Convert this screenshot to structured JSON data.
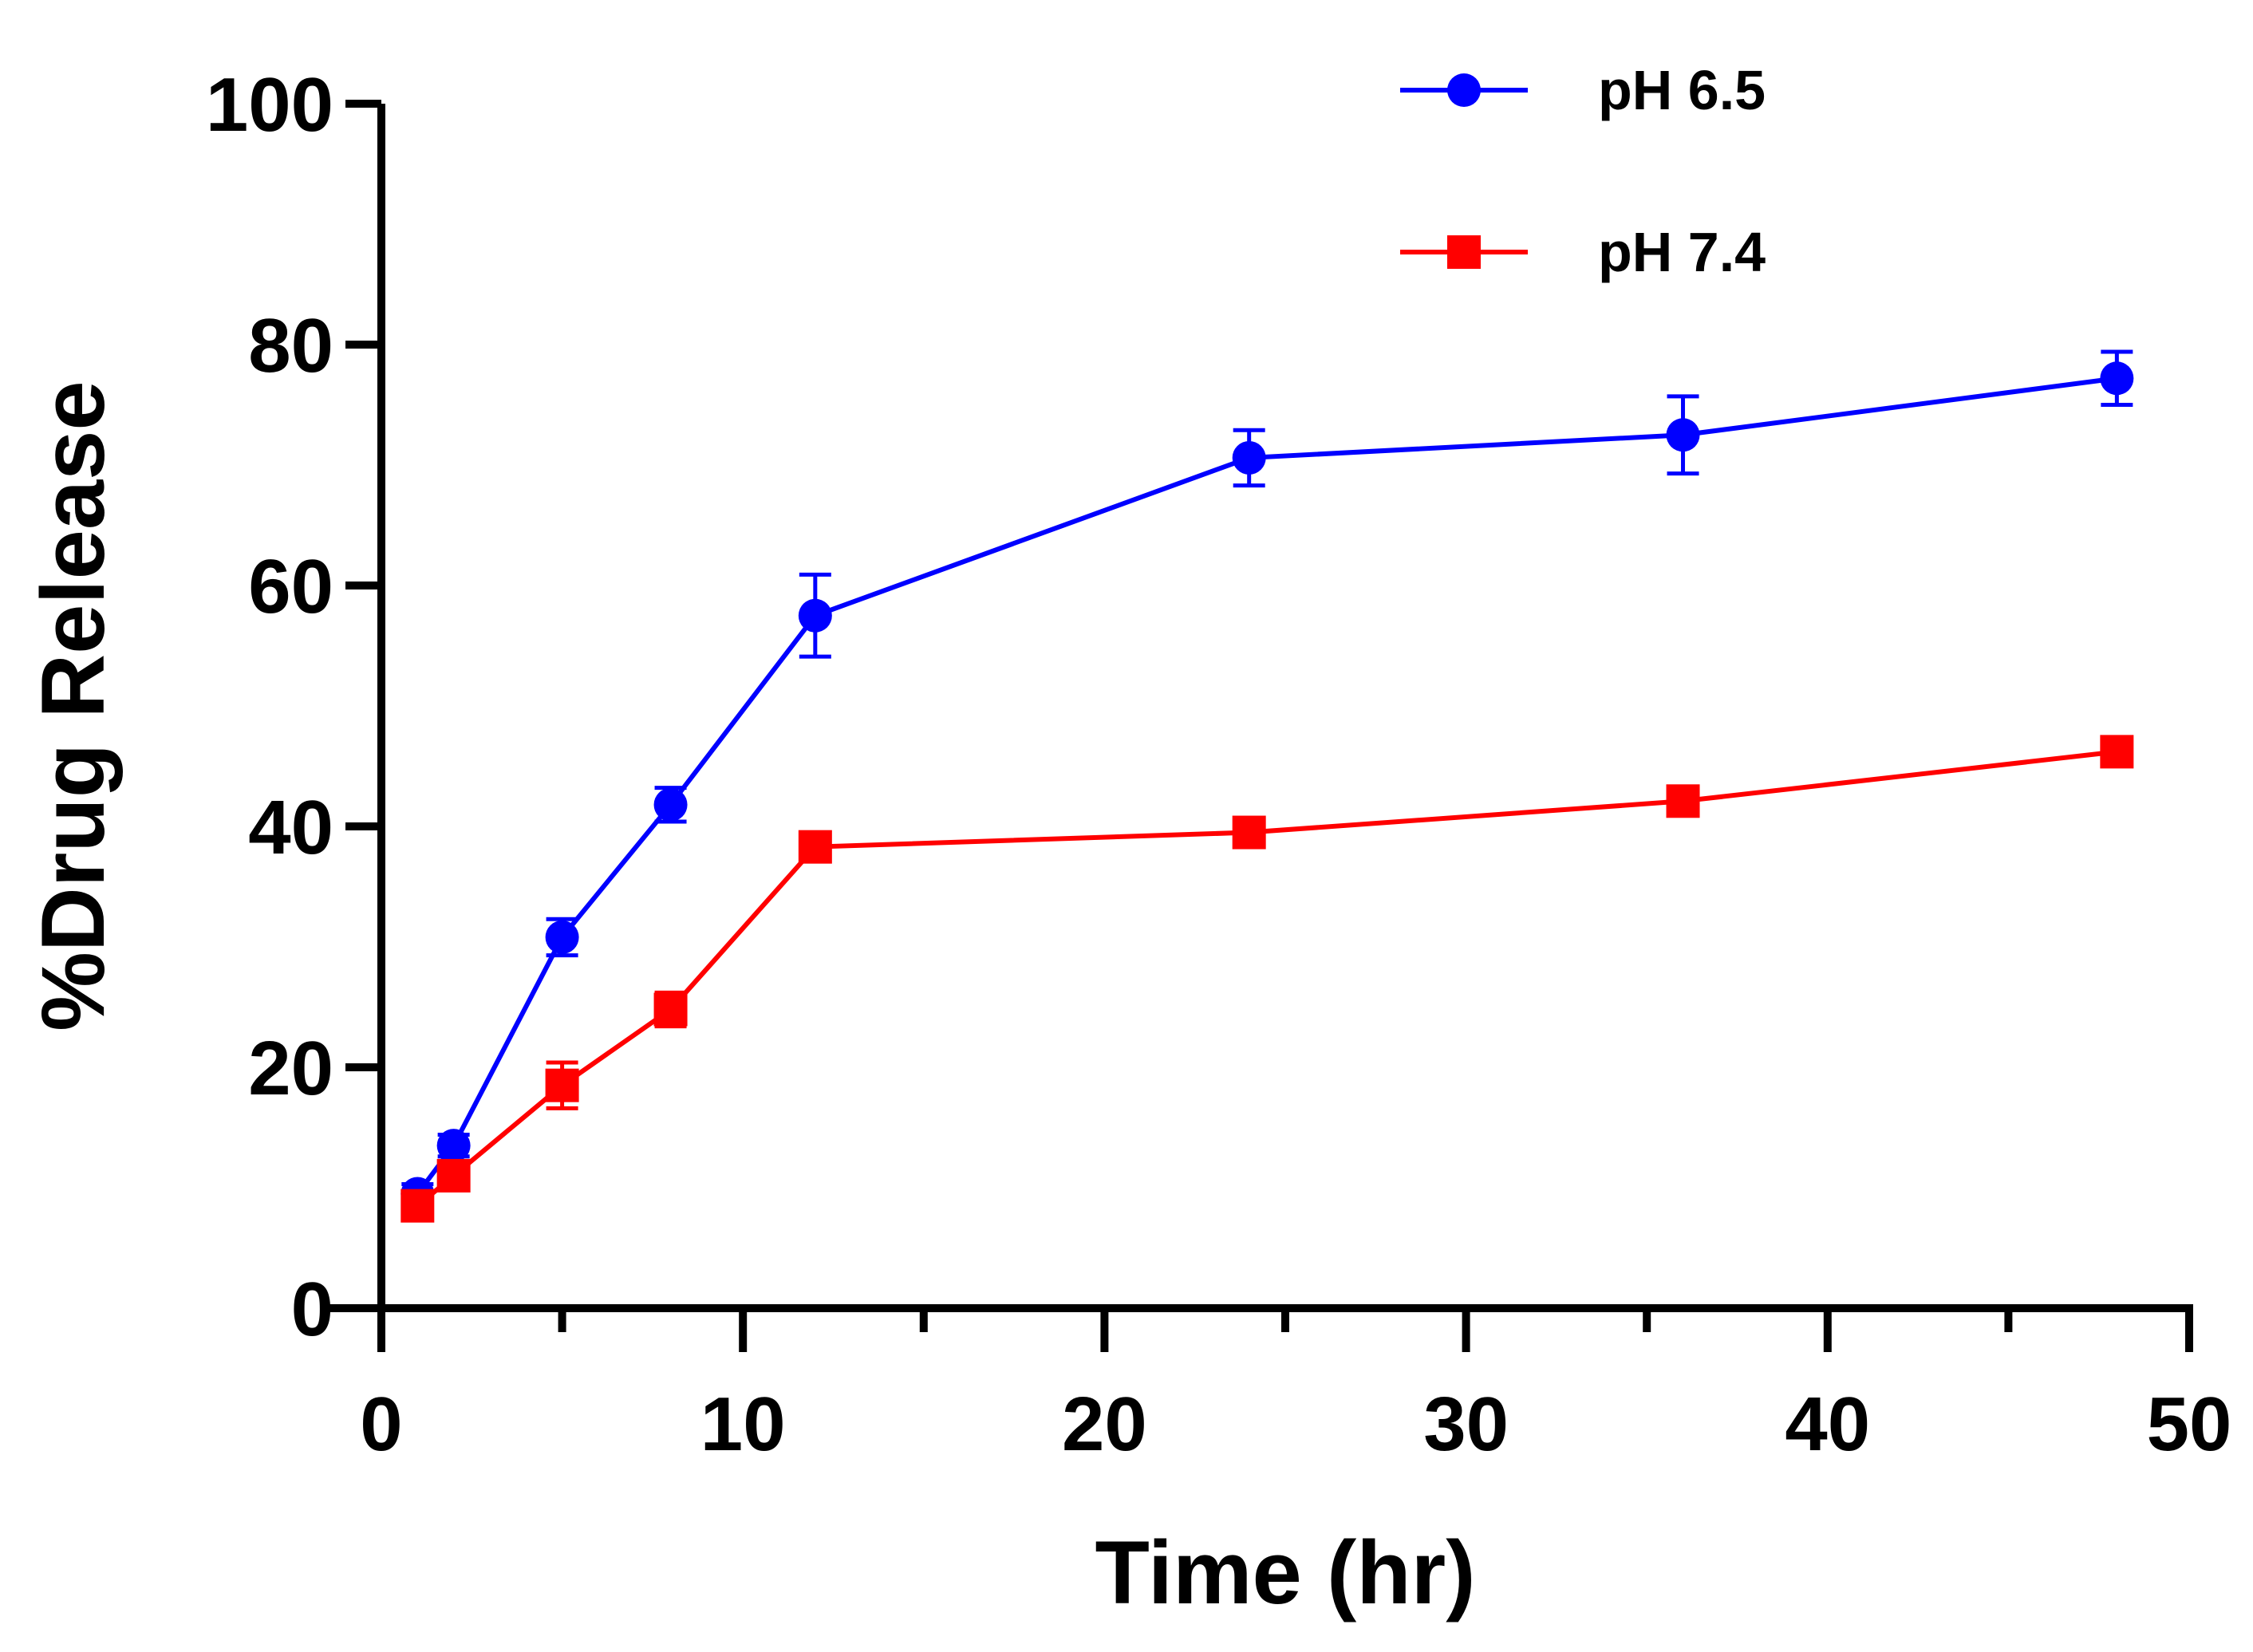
{
  "chart_data": {
    "type": "line",
    "title": "",
    "xlabel": "Time (hr)",
    "ylabel": "%Drug Release",
    "xlim": [
      0,
      50
    ],
    "ylim": [
      0,
      100
    ],
    "xticks": [
      0,
      10,
      20,
      30,
      40,
      50
    ],
    "xticks_minor": [
      5,
      15,
      25,
      35,
      45
    ],
    "yticks": [
      0,
      20,
      40,
      60,
      80,
      100
    ],
    "grid": false,
    "legend_position": "top-right",
    "x": [
      1,
      2,
      5,
      8,
      12,
      24,
      36,
      48
    ],
    "series": [
      {
        "name": "pH 6.5",
        "color": "#0000ff",
        "marker": "circle",
        "values": [
          9.5,
          13.5,
          30.8,
          41.8,
          57.5,
          70.6,
          72.5,
          77.2
        ],
        "errors": [
          0.8,
          0.9,
          1.5,
          1.4,
          3.4,
          2.3,
          3.2,
          2.2
        ]
      },
      {
        "name": "pH 7.4",
        "color": "#ff0000",
        "marker": "square",
        "values": [
          8.5,
          11.0,
          18.5,
          24.8,
          38.3,
          39.5,
          42.1,
          46.2
        ],
        "errors": [
          0.5,
          0.8,
          1.9,
          1.4,
          0.6,
          0.5,
          0.6,
          0.7
        ]
      }
    ]
  }
}
